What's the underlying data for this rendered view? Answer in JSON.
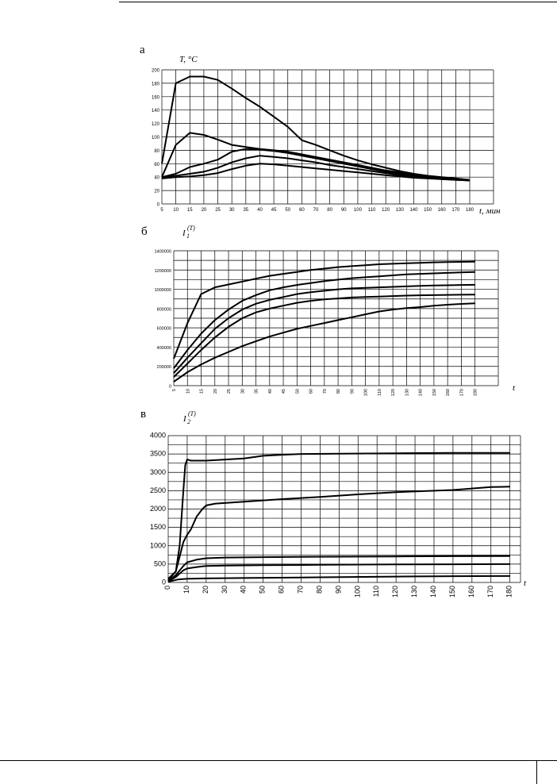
{
  "chart_data": [
    {
      "type": "line",
      "panel": "а",
      "ylabel": "T, °C",
      "xlabel": "t, мин",
      "categories": [
        "5",
        "10",
        "15",
        "20",
        "25",
        "30",
        "35",
        "40",
        "45",
        "50",
        "60",
        "70",
        "80",
        "90",
        "100",
        "110",
        "120",
        "130",
        "140",
        "150",
        "160",
        "170",
        "180"
      ],
      "ylim": [
        0,
        200
      ],
      "yticks": [
        "0",
        "20",
        "40",
        "60",
        "80",
        "100",
        "120",
        "140",
        "160",
        "180",
        "200"
      ],
      "grid": true,
      "series": [
        {
          "values": [
            60,
            180,
            190,
            190,
            185,
            172,
            158,
            145,
            130,
            115,
            95,
            88,
            80,
            72,
            65,
            59,
            54,
            49,
            45,
            42,
            40,
            38,
            36
          ]
        },
        {
          "values": [
            40,
            88,
            106,
            103,
            96,
            88,
            85,
            82,
            80,
            78,
            74,
            70,
            66,
            62,
            58,
            54,
            50,
            47,
            44,
            41,
            39,
            37,
            35
          ]
        },
        {
          "values": [
            40,
            45,
            55,
            60,
            66,
            78,
            82,
            81,
            79,
            76,
            72,
            68,
            64,
            60,
            56,
            52,
            48,
            45,
            42,
            40,
            38,
            36,
            35
          ]
        },
        {
          "values": [
            40,
            42,
            45,
            48,
            54,
            62,
            68,
            72,
            70,
            68,
            65,
            62,
            58,
            55,
            52,
            49,
            46,
            43,
            41,
            39,
            37,
            36,
            35
          ]
        },
        {
          "values": [
            38,
            40,
            41,
            43,
            46,
            52,
            57,
            60,
            59,
            57,
            55,
            53,
            51,
            49,
            47,
            45,
            43,
            41,
            39,
            38,
            37,
            36,
            35
          ]
        }
      ]
    },
    {
      "type": "line",
      "panel": "б",
      "ylabel_main": "I",
      "ylabel_sub": "1",
      "ylabel_sup": "(T)",
      "xlabel": "t",
      "categories": [
        "5",
        "10",
        "15",
        "20",
        "25",
        "30",
        "35",
        "40",
        "45",
        "50",
        "60",
        "70",
        "80",
        "90",
        "100",
        "110",
        "120",
        "130",
        "140",
        "150",
        "160",
        "170",
        "180"
      ],
      "ylim": [
        0,
        1400000
      ],
      "yticks": [
        "0",
        "200000",
        "400000",
        "600000",
        "800000",
        "1000000",
        "1200000",
        "1400000"
      ],
      "grid": true,
      "series": [
        {
          "values": [
            280000,
            650000,
            950000,
            1020000,
            1050000,
            1080000,
            1110000,
            1140000,
            1160000,
            1180000,
            1200000,
            1215000,
            1230000,
            1240000,
            1250000,
            1260000,
            1265000,
            1270000,
            1275000,
            1280000,
            1283000,
            1285000,
            1287000
          ]
        },
        {
          "values": [
            180000,
            370000,
            540000,
            680000,
            790000,
            880000,
            940000,
            990000,
            1020000,
            1045000,
            1065000,
            1085000,
            1100000,
            1115000,
            1125000,
            1135000,
            1145000,
            1155000,
            1160000,
            1165000,
            1170000,
            1175000,
            1180000
          ]
        },
        {
          "values": [
            130000,
            290000,
            440000,
            590000,
            700000,
            790000,
            850000,
            890000,
            920000,
            950000,
            970000,
            985000,
            1000000,
            1010000,
            1015000,
            1020000,
            1025000,
            1030000,
            1035000,
            1040000,
            1042000,
            1045000,
            1047000
          ]
        },
        {
          "values": [
            90000,
            230000,
            370000,
            500000,
            610000,
            700000,
            760000,
            800000,
            830000,
            860000,
            880000,
            895000,
            905000,
            915000,
            920000,
            925000,
            930000,
            935000,
            938000,
            940000,
            942000,
            944000,
            945000
          ]
        },
        {
          "values": [
            40000,
            140000,
            220000,
            290000,
            350000,
            410000,
            460000,
            510000,
            550000,
            590000,
            620000,
            650000,
            680000,
            710000,
            740000,
            770000,
            790000,
            805000,
            815000,
            830000,
            840000,
            848000,
            855000
          ]
        }
      ]
    },
    {
      "type": "line",
      "panel": "в",
      "ylabel_main": "I",
      "ylabel_sub": "2",
      "ylabel_sup": "(T)",
      "xlabel": "t",
      "xticks": [
        "0",
        "10",
        "20",
        "30",
        "40",
        "50",
        "60",
        "70",
        "80",
        "90",
        "100",
        "110",
        "120",
        "130",
        "140",
        "150",
        "160",
        "170",
        "180"
      ],
      "xlim": [
        0,
        180
      ],
      "ylim": [
        0,
        4000
      ],
      "yticks": [
        "0",
        "500",
        "1000",
        "1500",
        "2000",
        "2500",
        "3000",
        "3500",
        "4000"
      ],
      "grid": true,
      "series": [
        {
          "x": [
            0,
            4,
            6,
            8,
            9,
            10,
            12,
            20,
            30,
            40,
            50,
            60,
            70,
            90,
            120,
            150,
            180
          ],
          "y": [
            100,
            300,
            1000,
            2500,
            3200,
            3350,
            3320,
            3320,
            3350,
            3380,
            3450,
            3480,
            3500,
            3510,
            3520,
            3530,
            3530
          ]
        },
        {
          "x": [
            0,
            4,
            6,
            8,
            10,
            12,
            15,
            18,
            20,
            25,
            40,
            60,
            80,
            100,
            120,
            150,
            170,
            180
          ],
          "y": [
            60,
            300,
            700,
            1100,
            1300,
            1450,
            1800,
            2000,
            2100,
            2150,
            2200,
            2270,
            2330,
            2400,
            2460,
            2520,
            2600,
            2610
          ]
        },
        {
          "x": [
            0,
            4,
            8,
            10,
            15,
            20,
            30,
            50,
            80,
            120,
            150,
            180
          ],
          "y": [
            40,
            200,
            450,
            550,
            620,
            660,
            680,
            690,
            700,
            710,
            715,
            720
          ]
        },
        {
          "x": [
            0,
            4,
            8,
            10,
            15,
            20,
            30,
            50,
            80,
            120,
            150,
            180
          ],
          "y": [
            30,
            150,
            330,
            380,
            420,
            450,
            460,
            470,
            480,
            490,
            495,
            500
          ]
        },
        {
          "x": [
            0,
            5,
            10,
            20,
            40,
            80,
            120,
            150,
            180
          ],
          "y": [
            20,
            80,
            100,
            110,
            120,
            140,
            160,
            170,
            175
          ]
        }
      ]
    }
  ]
}
